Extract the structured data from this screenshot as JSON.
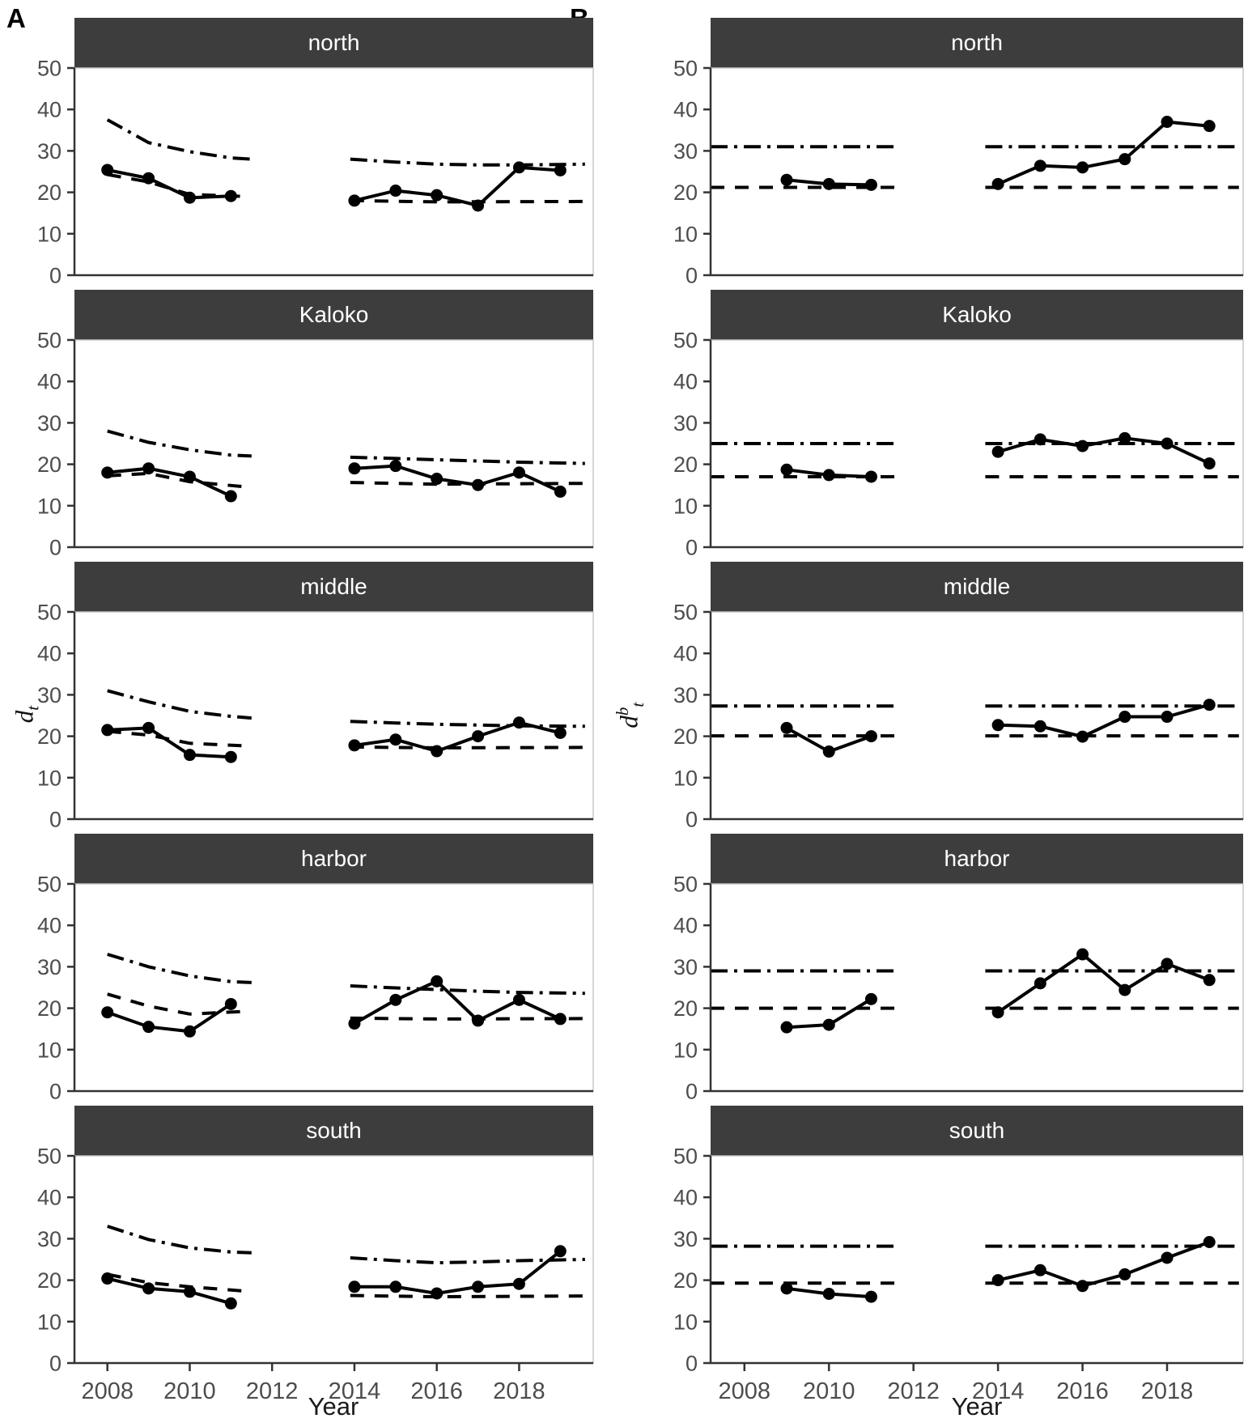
{
  "labels": {
    "panel_a": "A",
    "panel_b": "B"
  },
  "axes": {
    "x_label": "Year",
    "x_ticks": [
      2008,
      2010,
      2012,
      2014,
      2016,
      2018
    ],
    "y_ticks": [
      0,
      10,
      20,
      30,
      40,
      50
    ],
    "y_label_a": {
      "base": "d",
      "sub": "t"
    },
    "y_label_b": {
      "base": "d",
      "sup": "b",
      "sub": "t"
    }
  },
  "colors": {
    "strip_bg": "#3d3d3d",
    "strip_text": "#ffffff",
    "axis_line": "#333333",
    "tick_text": "#4d4d4d",
    "series": "#000000",
    "panel_border": "#c4c4c4"
  },
  "chart_data": [
    {
      "type": "line",
      "column_label": "A",
      "ylabel": "d_t",
      "xlabel": "Year",
      "xlim": [
        2007.2,
        2019.8
      ],
      "ylim": [
        0,
        50
      ],
      "x_ticks": [
        2008,
        2010,
        2012,
        2014,
        2016,
        2018
      ],
      "y_ticks": [
        0,
        10,
        20,
        30,
        40,
        50
      ],
      "grid": false,
      "legend": "none",
      "series_styles": {
        "observed": "solid line with filled points",
        "dashed": "dashed reference line",
        "dashdot": "dash-dot reference line"
      },
      "facets": [
        {
          "label": "north",
          "observed": [
            {
              "x": [
                2008,
                2009,
                2010,
                2011
              ],
              "y": [
                25.4,
                23.4,
                18.7,
                19.1
              ]
            },
            {
              "x": [
                2014,
                2015,
                2016,
                2017,
                2018,
                2019
              ],
              "y": [
                18.0,
                20.4,
                19.3,
                16.8,
                26.0,
                25.3
              ]
            }
          ],
          "dashed": [
            {
              "x": [
                2008,
                2009,
                2010,
                2011.3
              ],
              "y": [
                24.3,
                22.5,
                19.5,
                19.0
              ]
            },
            {
              "x": [
                2013.9,
                2016,
                2019.6
              ],
              "y": [
                18.0,
                17.7,
                17.8
              ]
            }
          ],
          "dashdot": [
            {
              "x": [
                2008,
                2009,
                2010,
                2011,
                2011.5
              ],
              "y": [
                37.5,
                32.0,
                29.8,
                28.3,
                28.0
              ]
            },
            {
              "x": [
                2013.9,
                2015,
                2016,
                2017,
                2018,
                2019.6
              ],
              "y": [
                28.0,
                27.3,
                26.8,
                26.6,
                26.6,
                26.8
              ]
            }
          ]
        },
        {
          "label": "Kaloko",
          "observed": [
            {
              "x": [
                2008,
                2009,
                2010,
                2011
              ],
              "y": [
                18.0,
                19.0,
                17.0,
                12.3
              ]
            },
            {
              "x": [
                2014,
                2015,
                2016,
                2017,
                2018,
                2019
              ],
              "y": [
                19.0,
                19.6,
                16.5,
                15.0,
                18.0,
                13.4
              ]
            }
          ],
          "dashed": [
            {
              "x": [
                2008,
                2009,
                2010,
                2011.3
              ],
              "y": [
                17.2,
                17.8,
                15.8,
                14.6
              ]
            },
            {
              "x": [
                2013.9,
                2016,
                2019.6
              ],
              "y": [
                15.6,
                15.2,
                15.4
              ]
            }
          ],
          "dashdot": [
            {
              "x": [
                2008,
                2009,
                2010,
                2011,
                2011.5
              ],
              "y": [
                28.0,
                25.3,
                23.5,
                22.2,
                22.0
              ]
            },
            {
              "x": [
                2013.9,
                2015,
                2016,
                2017,
                2018,
                2019.6
              ],
              "y": [
                21.7,
                21.4,
                21.1,
                20.8,
                20.5,
                20.2
              ]
            }
          ]
        },
        {
          "label": "middle",
          "observed": [
            {
              "x": [
                2008,
                2009,
                2010,
                2011
              ],
              "y": [
                21.5,
                22.0,
                15.5,
                15.0
              ]
            },
            {
              "x": [
                2014,
                2015,
                2016,
                2017,
                2018,
                2019
              ],
              "y": [
                17.8,
                19.2,
                16.4,
                20.0,
                23.3,
                20.8
              ]
            }
          ],
          "dashed": [
            {
              "x": [
                2008,
                2009,
                2010,
                2011.3
              ],
              "y": [
                21.2,
                20.3,
                18.3,
                17.7
              ]
            },
            {
              "x": [
                2013.9,
                2016,
                2019.6
              ],
              "y": [
                17.4,
                17.2,
                17.3
              ]
            }
          ],
          "dashdot": [
            {
              "x": [
                2008,
                2009,
                2010,
                2011,
                2011.5
              ],
              "y": [
                31.0,
                28.3,
                26.0,
                24.8,
                24.4
              ]
            },
            {
              "x": [
                2013.9,
                2015,
                2016,
                2017,
                2018,
                2019.6
              ],
              "y": [
                23.6,
                23.2,
                22.9,
                22.7,
                22.5,
                22.4
              ]
            }
          ]
        },
        {
          "label": "harbor",
          "observed": [
            {
              "x": [
                2008,
                2009,
                2010,
                2011
              ],
              "y": [
                19.0,
                15.5,
                14.4,
                21.0
              ]
            },
            {
              "x": [
                2014,
                2015,
                2016,
                2017,
                2018,
                2019
              ],
              "y": [
                16.3,
                22.0,
                26.5,
                17.0,
                22.0,
                17.4
              ]
            }
          ],
          "dashed": [
            {
              "x": [
                2008,
                2009,
                2010,
                2011.3
              ],
              "y": [
                23.4,
                20.5,
                18.6,
                19.2
              ]
            },
            {
              "x": [
                2013.9,
                2016,
                2019.6
              ],
              "y": [
                17.6,
                17.4,
                17.5
              ]
            }
          ],
          "dashdot": [
            {
              "x": [
                2008,
                2009,
                2010,
                2011,
                2011.5
              ],
              "y": [
                33.0,
                30.0,
                27.8,
                26.4,
                26.2
              ]
            },
            {
              "x": [
                2013.9,
                2015,
                2016,
                2017,
                2018,
                2019.6
              ],
              "y": [
                25.4,
                24.9,
                24.5,
                24.1,
                23.8,
                23.6
              ]
            }
          ]
        },
        {
          "label": "south",
          "observed": [
            {
              "x": [
                2008,
                2009,
                2010,
                2011
              ],
              "y": [
                20.4,
                18.0,
                17.2,
                14.4
              ]
            },
            {
              "x": [
                2014,
                2015,
                2016,
                2017,
                2018,
                2019
              ],
              "y": [
                18.4,
                18.4,
                16.8,
                18.4,
                19.1,
                27.0
              ]
            }
          ],
          "dashed": [
            {
              "x": [
                2008,
                2009,
                2010,
                2011.3
              ],
              "y": [
                21.4,
                19.4,
                18.4,
                17.4
              ]
            },
            {
              "x": [
                2013.9,
                2016,
                2019.6
              ],
              "y": [
                16.3,
                16.0,
                16.2
              ]
            }
          ],
          "dashdot": [
            {
              "x": [
                2008,
                2009,
                2010,
                2011,
                2011.5
              ],
              "y": [
                33.0,
                29.8,
                27.8,
                26.8,
                26.6
              ]
            },
            {
              "x": [
                2013.9,
                2015,
                2016,
                2017,
                2018,
                2019.6
              ],
              "y": [
                25.4,
                24.7,
                24.2,
                24.4,
                24.7,
                25.0
              ]
            }
          ]
        }
      ]
    },
    {
      "type": "line",
      "column_label": "B",
      "ylabel": "d^b_t",
      "xlabel": "Year",
      "xlim": [
        2007.2,
        2019.8
      ],
      "ylim": [
        0,
        50
      ],
      "x_ticks": [
        2008,
        2010,
        2012,
        2014,
        2016,
        2018
      ],
      "y_ticks": [
        0,
        10,
        20,
        30,
        40,
        50
      ],
      "grid": false,
      "legend": "none",
      "series_styles": {
        "observed": "solid line with filled points",
        "dashed": "dashed reference line (flat)",
        "dashdot": "dash-dot reference line (flat)"
      },
      "facets": [
        {
          "label": "north",
          "observed": [
            {
              "x": [
                2009,
                2010,
                2011
              ],
              "y": [
                23.0,
                22.0,
                21.8
              ]
            },
            {
              "x": [
                2014,
                2015,
                2016,
                2017,
                2018,
                2019
              ],
              "y": [
                22.0,
                26.4,
                26.0,
                28.0,
                37.0,
                36.0
              ]
            }
          ],
          "dashed": [
            {
              "x": [
                2007.2,
                2011.6
              ],
              "y": [
                21.2,
                21.2
              ]
            },
            {
              "x": [
                2013.7,
                2019.7
              ],
              "y": [
                21.2,
                21.2
              ]
            }
          ],
          "dashdot": [
            {
              "x": [
                2007.2,
                2011.6
              ],
              "y": [
                31.0,
                31.0
              ]
            },
            {
              "x": [
                2013.7,
                2019.7
              ],
              "y": [
                31.0,
                31.0
              ]
            }
          ]
        },
        {
          "label": "Kaloko",
          "observed": [
            {
              "x": [
                2009,
                2010,
                2011
              ],
              "y": [
                18.7,
                17.4,
                17.0
              ]
            },
            {
              "x": [
                2014,
                2015,
                2016,
                2017,
                2018,
                2019
              ],
              "y": [
                23.0,
                26.0,
                24.4,
                26.3,
                25.0,
                20.2
              ]
            }
          ],
          "dashed": [
            {
              "x": [
                2007.2,
                2011.6
              ],
              "y": [
                17.0,
                17.0
              ]
            },
            {
              "x": [
                2013.7,
                2019.7
              ],
              "y": [
                17.0,
                17.0
              ]
            }
          ],
          "dashdot": [
            {
              "x": [
                2007.2,
                2011.6
              ],
              "y": [
                25.0,
                25.0
              ]
            },
            {
              "x": [
                2013.7,
                2019.7
              ],
              "y": [
                25.0,
                25.0
              ]
            }
          ]
        },
        {
          "label": "middle",
          "observed": [
            {
              "x": [
                2009,
                2010,
                2011
              ],
              "y": [
                22.0,
                16.3,
                20.0
              ]
            },
            {
              "x": [
                2014,
                2015,
                2016,
                2017,
                2018,
                2019
              ],
              "y": [
                22.7,
                22.4,
                19.9,
                24.7,
                24.7,
                27.6
              ]
            }
          ],
          "dashed": [
            {
              "x": [
                2007.2,
                2011.6
              ],
              "y": [
                20.1,
                20.1
              ]
            },
            {
              "x": [
                2013.7,
                2019.7
              ],
              "y": [
                20.1,
                20.1
              ]
            }
          ],
          "dashdot": [
            {
              "x": [
                2007.2,
                2011.6
              ],
              "y": [
                27.3,
                27.3
              ]
            },
            {
              "x": [
                2013.7,
                2019.7
              ],
              "y": [
                27.3,
                27.3
              ]
            }
          ]
        },
        {
          "label": "harbor",
          "observed": [
            {
              "x": [
                2009,
                2010,
                2011
              ],
              "y": [
                15.4,
                16.0,
                22.2
              ]
            },
            {
              "x": [
                2014,
                2015,
                2016,
                2017,
                2018,
                2019
              ],
              "y": [
                19.0,
                26.0,
                33.0,
                24.4,
                30.7,
                26.8
              ]
            }
          ],
          "dashed": [
            {
              "x": [
                2007.2,
                2011.6
              ],
              "y": [
                20.0,
                20.0
              ]
            },
            {
              "x": [
                2013.7,
                2019.7
              ],
              "y": [
                20.0,
                20.0
              ]
            }
          ],
          "dashdot": [
            {
              "x": [
                2007.2,
                2011.6
              ],
              "y": [
                29.0,
                29.0
              ]
            },
            {
              "x": [
                2013.7,
                2019.7
              ],
              "y": [
                29.0,
                29.0
              ]
            }
          ]
        },
        {
          "label": "south",
          "observed": [
            {
              "x": [
                2009,
                2010,
                2011
              ],
              "y": [
                18.0,
                16.7,
                16.0
              ]
            },
            {
              "x": [
                2014,
                2015,
                2016,
                2017,
                2018,
                2019
              ],
              "y": [
                20.0,
                22.4,
                18.6,
                21.4,
                25.4,
                29.2
              ]
            }
          ],
          "dashed": [
            {
              "x": [
                2007.2,
                2011.6
              ],
              "y": [
                19.3,
                19.3
              ]
            },
            {
              "x": [
                2013.7,
                2019.7
              ],
              "y": [
                19.3,
                19.3
              ]
            }
          ],
          "dashdot": [
            {
              "x": [
                2007.2,
                2011.6
              ],
              "y": [
                28.2,
                28.2
              ]
            },
            {
              "x": [
                2013.7,
                2019.7
              ],
              "y": [
                28.2,
                28.2
              ]
            }
          ]
        }
      ]
    }
  ]
}
